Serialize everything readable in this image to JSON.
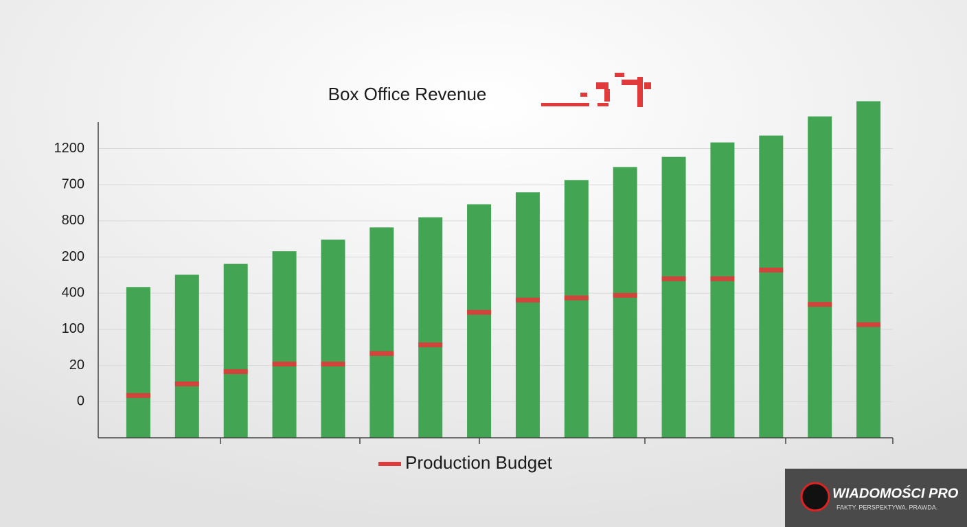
{
  "chart_data": {
    "type": "bar",
    "title": "Box Office Revenue",
    "categories": [
      null,
      null,
      null,
      null,
      null,
      null,
      null,
      null,
      null,
      null,
      null,
      null,
      null,
      null,
      null,
      null
    ],
    "values": [
      3.17,
      3.51,
      3.81,
      4.16,
      4.48,
      4.82,
      5.1,
      5.46,
      5.79,
      6.13,
      6.49,
      6.77,
      7.17,
      7.36,
      7.89,
      8.31
    ],
    "color": "#43a454",
    "series": [
      {
        "name": "Production Budget",
        "color": "#e03a3a",
        "values": [
          0.17,
          0.49,
          0.83,
          1.04,
          1.04,
          1.33,
          1.57,
          2.47,
          2.81,
          2.87,
          2.94,
          3.4,
          3.4,
          3.64,
          2.69,
          2.13
        ]
      }
    ],
    "ylim": [
      -1,
      8.5
    ],
    "yticks": [
      {
        "value": 0,
        "label": "0"
      },
      {
        "value": 1,
        "label": "20"
      },
      {
        "value": 2,
        "label": "100"
      },
      {
        "value": 3,
        "label": "400"
      },
      {
        "value": 4,
        "label": "200"
      },
      {
        "value": 5,
        "label": "800"
      },
      {
        "value": 6,
        "label": "700"
      },
      {
        "value": 7,
        "label": "1200"
      }
    ],
    "grid": true,
    "watermark": {
      "name": "WIADOMOŚCI PRO",
      "tagline": "FAKTY. PERSPEKTYWA. PRAWDA."
    }
  }
}
